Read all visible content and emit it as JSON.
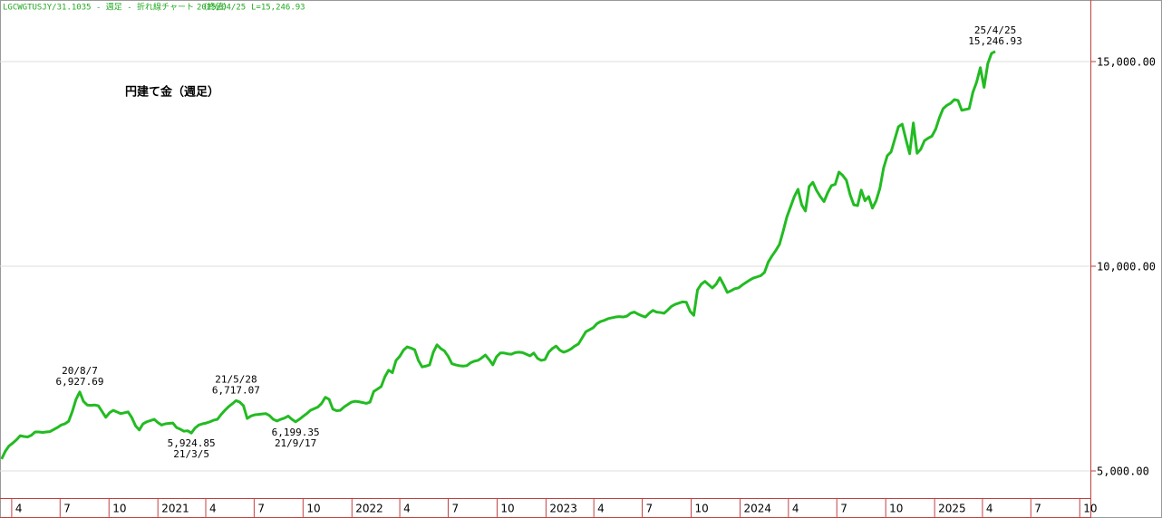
{
  "chart_data": {
    "type": "line",
    "header": "LGCWGTUSJY/31.1035 - 週足 - 折れ線チャート （終値）",
    "header_date": "2025/04/25",
    "header_last": "L=15,246.93",
    "x": [
      "2020-03-13",
      "2020-03-20",
      "2020-03-27",
      "2020-04-03",
      "2020-04-10",
      "2020-04-17",
      "2020-04-24",
      "2020-05-01",
      "2020-05-08",
      "2020-05-15",
      "2020-05-22",
      "2020-05-29",
      "2020-06-05",
      "2020-06-12",
      "2020-06-19",
      "2020-06-26",
      "2020-07-03",
      "2020-07-10",
      "2020-07-17",
      "2020-07-24",
      "2020-07-31",
      "2020-08-07",
      "2020-08-14",
      "2020-08-21",
      "2020-08-28",
      "2020-09-04",
      "2020-09-11",
      "2020-09-18",
      "2020-09-25",
      "2020-10-02",
      "2020-10-09",
      "2020-10-16",
      "2020-10-23",
      "2020-10-30",
      "2020-11-06",
      "2020-11-13",
      "2020-11-20",
      "2020-11-27",
      "2020-12-04",
      "2020-12-11",
      "2020-12-18",
      "2020-12-25",
      "2021-01-01",
      "2021-01-08",
      "2021-01-15",
      "2021-01-22",
      "2021-01-29",
      "2021-02-05",
      "2021-02-12",
      "2021-02-19",
      "2021-02-26",
      "2021-03-05",
      "2021-03-12",
      "2021-03-19",
      "2021-03-26",
      "2021-04-02",
      "2021-04-09",
      "2021-04-16",
      "2021-04-23",
      "2021-04-30",
      "2021-05-07",
      "2021-05-14",
      "2021-05-21",
      "2021-05-28",
      "2021-06-04",
      "2021-06-11",
      "2021-06-18",
      "2021-06-25",
      "2021-07-02",
      "2021-07-09",
      "2021-07-16",
      "2021-07-23",
      "2021-07-30",
      "2021-08-06",
      "2021-08-13",
      "2021-08-20",
      "2021-08-27",
      "2021-09-03",
      "2021-09-10",
      "2021-09-17",
      "2021-09-24",
      "2021-10-01",
      "2021-10-08",
      "2021-10-15",
      "2021-10-22",
      "2021-10-29",
      "2021-11-05",
      "2021-11-12",
      "2021-11-19",
      "2021-11-26",
      "2021-12-03",
      "2021-12-10",
      "2021-12-17",
      "2021-12-24",
      "2021-12-31",
      "2022-01-07",
      "2022-01-14",
      "2022-01-21",
      "2022-01-28",
      "2022-02-04",
      "2022-02-11",
      "2022-02-18",
      "2022-02-25",
      "2022-03-04",
      "2022-03-11",
      "2022-03-18",
      "2022-03-25",
      "2022-04-01",
      "2022-04-08",
      "2022-04-15",
      "2022-04-22",
      "2022-04-29",
      "2022-05-06",
      "2022-05-13",
      "2022-05-20",
      "2022-05-27",
      "2022-06-03",
      "2022-06-10",
      "2022-06-17",
      "2022-06-24",
      "2022-07-01",
      "2022-07-08",
      "2022-07-15",
      "2022-07-22",
      "2022-07-29",
      "2022-08-05",
      "2022-08-12",
      "2022-08-19",
      "2022-08-26",
      "2022-09-02",
      "2022-09-09",
      "2022-09-16",
      "2022-09-23",
      "2022-09-30",
      "2022-10-07",
      "2022-10-14",
      "2022-10-21",
      "2022-10-28",
      "2022-11-04",
      "2022-11-11",
      "2022-11-18",
      "2022-11-25",
      "2022-12-02",
      "2022-12-09",
      "2022-12-16",
      "2022-12-23",
      "2022-12-30",
      "2023-01-06",
      "2023-01-13",
      "2023-01-20",
      "2023-01-27",
      "2023-02-03",
      "2023-02-10",
      "2023-02-17",
      "2023-02-24",
      "2023-03-03",
      "2023-03-10",
      "2023-03-17",
      "2023-03-24",
      "2023-03-31",
      "2023-04-07",
      "2023-04-14",
      "2023-04-21",
      "2023-04-28",
      "2023-05-05",
      "2023-05-12",
      "2023-05-19",
      "2023-05-26",
      "2023-06-02",
      "2023-06-09",
      "2023-06-16",
      "2023-06-23",
      "2023-06-30",
      "2023-07-07",
      "2023-07-14",
      "2023-07-21",
      "2023-07-28",
      "2023-08-04",
      "2023-08-11",
      "2023-08-18",
      "2023-08-25",
      "2023-09-01",
      "2023-09-08",
      "2023-09-15",
      "2023-09-22",
      "2023-09-29",
      "2023-10-06",
      "2023-10-13",
      "2023-10-20",
      "2023-10-27",
      "2023-11-03",
      "2023-11-10",
      "2023-11-17",
      "2023-11-24",
      "2023-12-01",
      "2023-12-08",
      "2023-12-15",
      "2023-12-22",
      "2023-12-29",
      "2024-01-05",
      "2024-01-12",
      "2024-01-19",
      "2024-01-26",
      "2024-02-02",
      "2024-02-09",
      "2024-02-16",
      "2024-02-23",
      "2024-03-01",
      "2024-03-08",
      "2024-03-15",
      "2024-03-22",
      "2024-03-29",
      "2024-04-05",
      "2024-04-12",
      "2024-04-19",
      "2024-04-26",
      "2024-05-03",
      "2024-05-10",
      "2024-05-17",
      "2024-05-24",
      "2024-05-31",
      "2024-06-07",
      "2024-06-14",
      "2024-06-21",
      "2024-06-28",
      "2024-07-05",
      "2024-07-12",
      "2024-07-19",
      "2024-07-26",
      "2024-08-02",
      "2024-08-09",
      "2024-08-16",
      "2024-08-23",
      "2024-08-30",
      "2024-09-06",
      "2024-09-13",
      "2024-09-20",
      "2024-09-27",
      "2024-10-04",
      "2024-10-11",
      "2024-10-18",
      "2024-10-25",
      "2024-11-01",
      "2024-11-08",
      "2024-11-15",
      "2024-11-22",
      "2024-11-29",
      "2024-12-06",
      "2024-12-13",
      "2024-12-20",
      "2024-12-27",
      "2025-01-03",
      "2025-01-10",
      "2025-01-17",
      "2025-01-24",
      "2025-01-31",
      "2025-02-07",
      "2025-02-14",
      "2025-02-21",
      "2025-02-28",
      "2025-03-07",
      "2025-03-14",
      "2025-03-21",
      "2025-03-28",
      "2025-04-04",
      "2025-04-11",
      "2025-04-18",
      "2025-04-25"
    ],
    "series": [
      {
        "name": "円建て金（週足）",
        "color": "#22bb22",
        "values": [
          5290,
          5480,
          5610,
          5680,
          5760,
          5860,
          5840,
          5830,
          5870,
          5950,
          5950,
          5940,
          5950,
          5960,
          6010,
          6060,
          6120,
          6150,
          6210,
          6450,
          6750,
          6927.69,
          6700,
          6610,
          6600,
          6610,
          6590,
          6450,
          6310,
          6420,
          6480,
          6440,
          6400,
          6420,
          6440,
          6300,
          6100,
          6000,
          6150,
          6200,
          6230,
          6260,
          6180,
          6120,
          6150,
          6160,
          6170,
          6060,
          6020,
          5970,
          5980,
          5924.85,
          6050,
          6120,
          6150,
          6170,
          6200,
          6240,
          6260,
          6380,
          6480,
          6570,
          6640,
          6717.07,
          6680,
          6590,
          6280,
          6340,
          6370,
          6380,
          6390,
          6400,
          6350,
          6260,
          6220,
          6260,
          6290,
          6340,
          6260,
          6199.35,
          6260,
          6330,
          6400,
          6480,
          6520,
          6560,
          6650,
          6800,
          6750,
          6510,
          6470,
          6480,
          6560,
          6620,
          6680,
          6700,
          6690,
          6670,
          6650,
          6680,
          6940,
          7000,
          7060,
          7300,
          7460,
          7400,
          7700,
          7800,
          7950,
          8030,
          8000,
          7960,
          7700,
          7540,
          7560,
          7590,
          7900,
          8080,
          7990,
          7930,
          7800,
          7620,
          7590,
          7570,
          7560,
          7570,
          7640,
          7680,
          7700,
          7760,
          7830,
          7720,
          7590,
          7790,
          7880,
          7880,
          7860,
          7850,
          7890,
          7900,
          7890,
          7850,
          7810,
          7880,
          7750,
          7700,
          7720,
          7900,
          7990,
          8050,
          7950,
          7900,
          7930,
          7980,
          8050,
          8100,
          8250,
          8400,
          8450,
          8500,
          8600,
          8650,
          8680,
          8720,
          8740,
          8760,
          8770,
          8760,
          8780,
          8850,
          8880,
          8830,
          8790,
          8760,
          8850,
          8920,
          8880,
          8870,
          8850,
          8930,
          9020,
          9070,
          9100,
          9130,
          9120,
          8900,
          8800,
          9420,
          9560,
          9630,
          9550,
          9470,
          9560,
          9720,
          9550,
          9360,
          9400,
          9450,
          9470,
          9540,
          9600,
          9660,
          9710,
          9740,
          9770,
          9850,
          10100,
          10250,
          10380,
          10530,
          10850,
          11200,
          11450,
          11700,
          11880,
          11500,
          11350,
          11950,
          12050,
          11850,
          11700,
          11580,
          11800,
          11970,
          12000,
          12300,
          12220,
          12100,
          11750,
          11500,
          11480,
          11860,
          11600,
          11700,
          11420,
          11600,
          11900,
          12400,
          12700,
          12790,
          13100,
          13410,
          13470,
          13100,
          12750,
          13500,
          12760,
          12860,
          13070,
          13130,
          13180,
          13350,
          13630,
          13850,
          13930,
          13980,
          14070,
          14050,
          13810,
          13830,
          13850,
          14250,
          14500,
          14850,
          14370,
          14950,
          15200,
          15246.93
        ]
      }
    ],
    "annotations": [
      {
        "x": "2020-08-07",
        "position": "above",
        "lines": [
          "20/8/7",
          "6,927.69"
        ]
      },
      {
        "x": "2021-03-05",
        "position": "below",
        "lines": [
          "5,924.85",
          "21/3/5"
        ]
      },
      {
        "x": "2021-05-28",
        "position": "above",
        "lines": [
          "21/5/28",
          "6,717.07"
        ]
      },
      {
        "x": "2021-09-17",
        "position": "below",
        "lines": [
          "6,199.35",
          "21/9/17"
        ]
      },
      {
        "x": "2025-04-25",
        "position": "above",
        "lines": [
          "25/4/25",
          "15,246.93"
        ]
      }
    ],
    "xlim": [
      "2020-03-10",
      "2025-10-21"
    ],
    "xticks": [
      {
        "value": "2020-04-01",
        "label": "4"
      },
      {
        "value": "2020-07-01",
        "label": "7"
      },
      {
        "value": "2020-10-01",
        "label": "10"
      },
      {
        "value": "2021-01-01",
        "label": "2021"
      },
      {
        "value": "2021-04-01",
        "label": "4"
      },
      {
        "value": "2021-07-01",
        "label": "7"
      },
      {
        "value": "2021-10-01",
        "label": "10"
      },
      {
        "value": "2022-01-01",
        "label": "2022"
      },
      {
        "value": "2022-04-01",
        "label": "4"
      },
      {
        "value": "2022-07-01",
        "label": "7"
      },
      {
        "value": "2022-10-01",
        "label": "10"
      },
      {
        "value": "2023-01-01",
        "label": "2023"
      },
      {
        "value": "2023-04-01",
        "label": "4"
      },
      {
        "value": "2023-07-01",
        "label": "7"
      },
      {
        "value": "2023-10-01",
        "label": "10"
      },
      {
        "value": "2024-01-01",
        "label": "2024"
      },
      {
        "value": "2024-04-01",
        "label": "4"
      },
      {
        "value": "2024-07-01",
        "label": "7"
      },
      {
        "value": "2024-10-01",
        "label": "10"
      },
      {
        "value": "2025-01-01",
        "label": "2025"
      },
      {
        "value": "2025-04-01",
        "label": "4"
      },
      {
        "value": "2025-07-01",
        "label": "7"
      },
      {
        "value": "2025-10-01",
        "label": "10"
      }
    ],
    "ylim": [
      4336,
      16504
    ],
    "yticks": [
      {
        "value": 5000,
        "label": "5,000.00"
      },
      {
        "value": 10000,
        "label": "10,000.00"
      },
      {
        "value": 15000,
        "label": "15,000.00"
      }
    ],
    "grid": true
  }
}
